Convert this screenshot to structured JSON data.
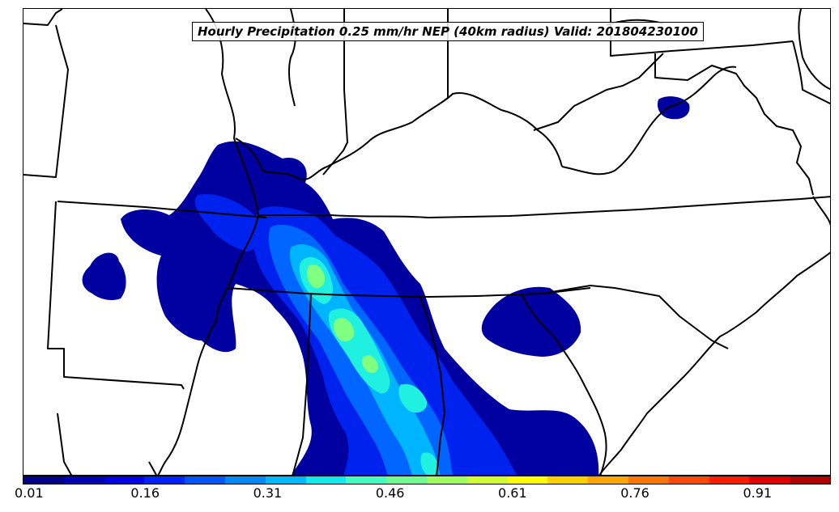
{
  "title": "Hourly Precipitation 0.25 mm/hr NEP (40km radius) Valid: 201804230100",
  "colorbar": {
    "colors": [
      "#00008c",
      "#0000b4",
      "#0000e6",
      "#0022ff",
      "#0055ff",
      "#0088ff",
      "#00b8ff",
      "#10eaee",
      "#40ffbf",
      "#6fff8f",
      "#9fff5f",
      "#cfff2f",
      "#ffff00",
      "#ffd000",
      "#ffa500",
      "#ff7700",
      "#ff4800",
      "#ff1a00",
      "#e00000",
      "#b00000"
    ],
    "min": 0.01,
    "max": 1.0,
    "tick_labels": [
      "0.01",
      "0.16",
      "0.31",
      "0.46",
      "0.61",
      "0.76",
      "0.91"
    ]
  },
  "layers": {
    "dark_blue": "#0000a0",
    "blue": "#0022ee",
    "mid_blue": "#0066ff",
    "light_blue": "#00b4ff",
    "cyan": "#20f0e0",
    "green": "#80ff80"
  }
}
